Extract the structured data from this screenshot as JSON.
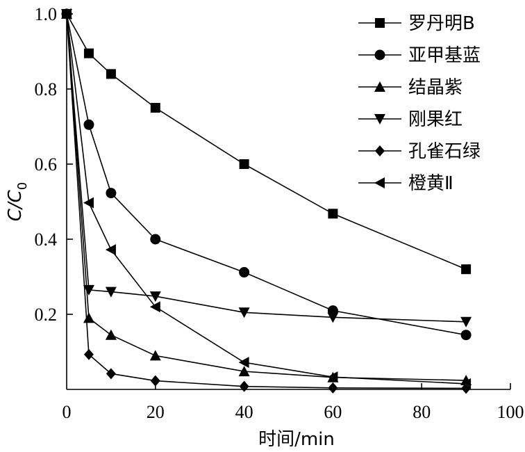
{
  "chart_data": {
    "type": "line",
    "xlabel": "时间/min",
    "ylabel": {
      "main": "C/C",
      "sub": "0"
    },
    "xlim": [
      0,
      100
    ],
    "ylim": [
      0,
      1.0
    ],
    "xticks": [
      "0",
      "20",
      "40",
      "60",
      "80",
      "100"
    ],
    "yticks": [
      "0.2",
      "0.4",
      "0.6",
      "0.8",
      "1.0"
    ],
    "grid": false,
    "legend_position": "top-right",
    "x": [
      0,
      5,
      10,
      20,
      40,
      60,
      90
    ],
    "series": [
      {
        "name": "罗丹明B",
        "marker": "square",
        "values": [
          1.0,
          0.895,
          0.84,
          0.75,
          0.6,
          0.468,
          0.32
        ]
      },
      {
        "name": "亚甲基蓝",
        "marker": "circle",
        "values": [
          1.0,
          0.705,
          0.523,
          0.4,
          0.312,
          0.21,
          0.145
        ]
      },
      {
        "name": "结晶紫",
        "marker": "triangle-up",
        "values": [
          1.0,
          0.19,
          0.145,
          0.09,
          0.048,
          0.032,
          0.024
        ]
      },
      {
        "name": "刚果红",
        "marker": "triangle-down",
        "values": [
          1.0,
          0.265,
          0.26,
          0.248,
          0.205,
          0.192,
          0.18
        ]
      },
      {
        "name": "孔雀石绿",
        "marker": "diamond",
        "values": [
          1.0,
          0.093,
          0.042,
          0.023,
          0.008,
          0.004,
          0.003
        ]
      },
      {
        "name": "橙黄Ⅱ",
        "marker": "triangle-left",
        "values": [
          1.0,
          0.497,
          0.372,
          0.22,
          0.072,
          0.033,
          0.015
        ]
      }
    ]
  }
}
